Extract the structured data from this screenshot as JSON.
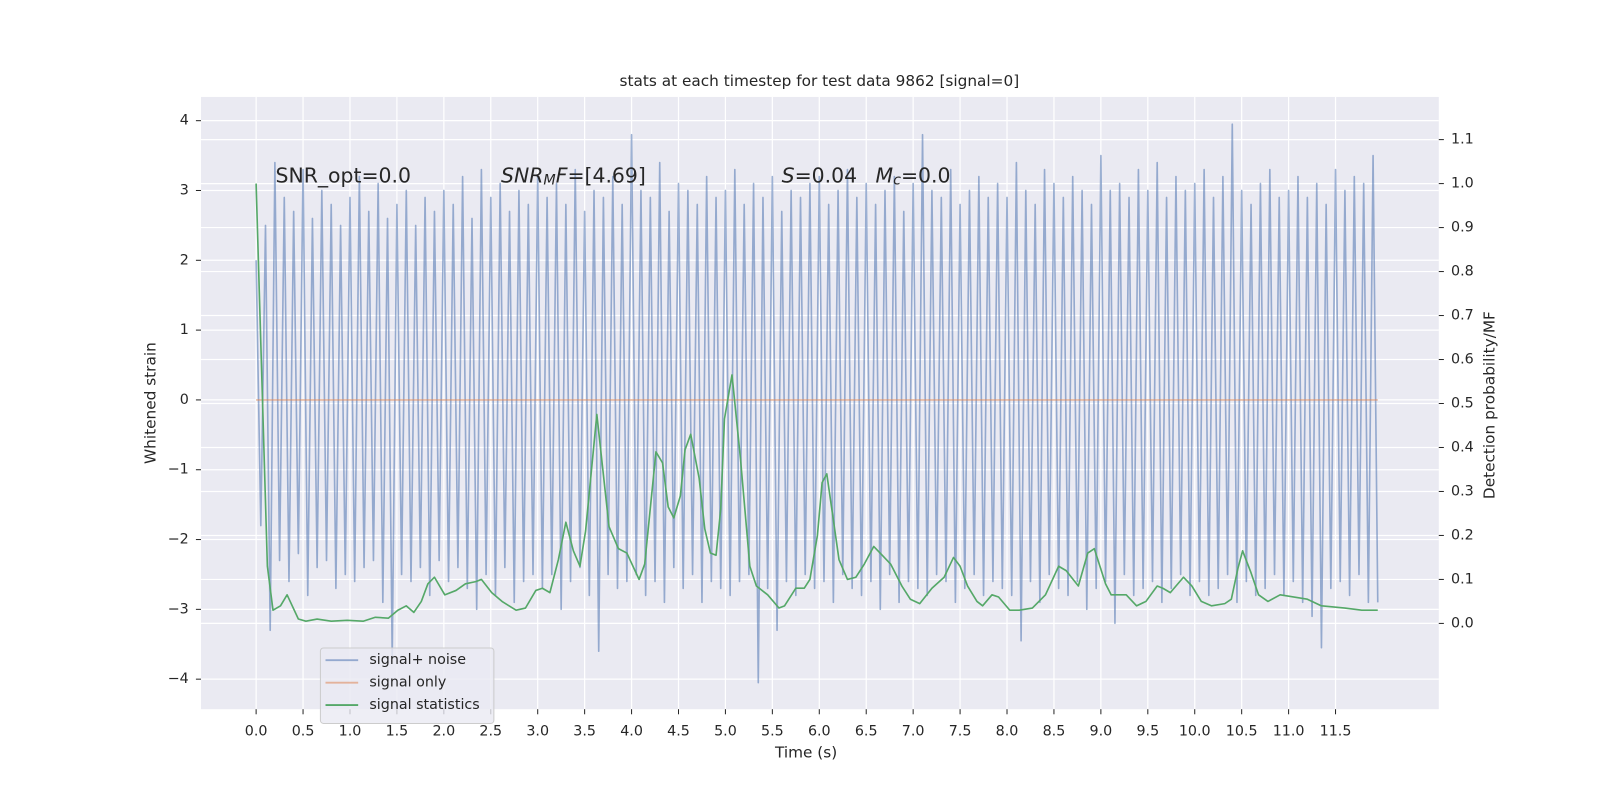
{
  "chart_data": {
    "type": "line",
    "title": "stats at each timestep for test data 9862 [signal=0]",
    "xlabel": "Time (s)",
    "ylabel": "Whitened strain",
    "y2label": "Detection probability/MF",
    "grid": true,
    "legend": "lower left",
    "xlim": [
      -0.587,
      12.6
    ],
    "ylim": [
      -4.43,
      4.34
    ],
    "y2lim": [
      -0.195,
      1.197
    ],
    "xticks": [
      {
        "value": 0,
        "label": "0.0"
      },
      0.5,
      {
        "value": 1,
        "label": "1.0"
      },
      1.5,
      {
        "value": 2,
        "label": "2.0"
      },
      2.5,
      {
        "value": 3,
        "label": "3.0"
      },
      3.5,
      {
        "value": 4,
        "label": "4.0"
      },
      4.5,
      {
        "value": 5,
        "label": "5.0"
      },
      5.5,
      {
        "value": 6,
        "label": "6.0"
      },
      6.5,
      {
        "value": 7,
        "label": "7.0"
      },
      7.5,
      {
        "value": 8,
        "label": "8.0"
      },
      8.5,
      {
        "value": 9,
        "label": "9.0"
      },
      9.5,
      {
        "value": 10,
        "label": "10.0"
      },
      10.5,
      {
        "value": 11,
        "label": "11.0"
      },
      11.5
    ],
    "yticks": [
      {
        "value": -4,
        "label": "−4"
      },
      {
        "value": -3,
        "label": "−3"
      },
      {
        "value": -2,
        "label": "−2"
      },
      {
        "value": -1,
        "label": "−1"
      },
      0,
      1,
      2,
      3,
      4
    ],
    "y2ticks": [
      {
        "value": 0,
        "label": "0.0"
      },
      0.1,
      0.2,
      0.3,
      0.4,
      0.5,
      0.6,
      0.7,
      0.8,
      0.9,
      {
        "value": 1,
        "label": "1.0"
      },
      1.1
    ],
    "annotations": [
      [
        {
          "text": "SNR_opt=0.0"
        }
      ],
      [
        {
          "text": "SNR",
          "italic": true
        },
        {
          "text": "M",
          "italic": true,
          "sub": true
        },
        {
          "text": "F",
          "italic": true
        },
        {
          "text": "=[4.69]"
        }
      ],
      [
        {
          "text": "S",
          "italic": true
        },
        {
          "text": "=0.04"
        }
      ],
      [
        {
          "text": "M",
          "italic": true
        },
        {
          "text": "c",
          "italic": true,
          "sub": true
        },
        {
          "text": "=0.0"
        }
      ]
    ],
    "series": [
      {
        "name": "signal+ noise",
        "color": "#4c72b0",
        "alpha": 0.55,
        "x": [
          0,
          0.05,
          0.1,
          0.15,
          0.2,
          0.25,
          0.3,
          0.35,
          0.4,
          0.45,
          0.5,
          0.55,
          0.6,
          0.65,
          0.7,
          0.75,
          0.8,
          0.85,
          0.9,
          0.95,
          1,
          1.05,
          1.1,
          1.15,
          1.2,
          1.25,
          1.3,
          1.35,
          1.4,
          1.45,
          1.5,
          1.55,
          1.6,
          1.65,
          1.7,
          1.75,
          1.8,
          1.85,
          1.9,
          1.95,
          2,
          2.05,
          2.1,
          2.15,
          2.2,
          2.25,
          2.3,
          2.35,
          2.4,
          2.45,
          2.5,
          2.55,
          2.6,
          2.65,
          2.7,
          2.75,
          2.8,
          2.85,
          2.9,
          2.95,
          3,
          3.05,
          3.1,
          3.15,
          3.2,
          3.25,
          3.3,
          3.35,
          3.4,
          3.45,
          3.5,
          3.55,
          3.6,
          3.65,
          3.7,
          3.75,
          3.8,
          3.85,
          3.9,
          3.95,
          4,
          4.05,
          4.1,
          4.15,
          4.2,
          4.25,
          4.3,
          4.35,
          4.4,
          4.45,
          4.5,
          4.55,
          4.6,
          4.65,
          4.7,
          4.75,
          4.8,
          4.85,
          4.9,
          4.95,
          5,
          5.05,
          5.1,
          5.15,
          5.2,
          5.25,
          5.3,
          5.35,
          5.4,
          5.45,
          5.5,
          5.55,
          5.6,
          5.65,
          5.7,
          5.75,
          5.8,
          5.85,
          5.9,
          5.95,
          6,
          6.05,
          6.1,
          6.15,
          6.2,
          6.25,
          6.3,
          6.35,
          6.4,
          6.45,
          6.5,
          6.55,
          6.6,
          6.65,
          6.7,
          6.75,
          6.8,
          6.85,
          6.9,
          6.95,
          7,
          7.05,
          7.1,
          7.15,
          7.2,
          7.25,
          7.3,
          7.35,
          7.4,
          7.45,
          7.5,
          7.55,
          7.6,
          7.65,
          7.7,
          7.75,
          7.8,
          7.85,
          7.9,
          7.95,
          8,
          8.05,
          8.1,
          8.15,
          8.2,
          8.25,
          8.3,
          8.35,
          8.4,
          8.45,
          8.5,
          8.55,
          8.6,
          8.65,
          8.7,
          8.75,
          8.8,
          8.85,
          8.9,
          8.95,
          9,
          9.05,
          9.1,
          9.15,
          9.2,
          9.25,
          9.3,
          9.35,
          9.4,
          9.45,
          9.5,
          9.55,
          9.6,
          9.65,
          9.7,
          9.75,
          9.8,
          9.85,
          9.9,
          9.95,
          10,
          10.05,
          10.1,
          10.15,
          10.2,
          10.25,
          10.3,
          10.35,
          10.4,
          10.45,
          10.5,
          10.55,
          10.6,
          10.65,
          10.7,
          10.75,
          10.8,
          10.85,
          10.9,
          10.95,
          11,
          11.05,
          11.1,
          11.15,
          11.2,
          11.25,
          11.3,
          11.35,
          11.4,
          11.45,
          11.5,
          11.55,
          11.6,
          11.65,
          11.7,
          11.75,
          11.8,
          11.85,
          11.9,
          11.95
        ],
        "values": [
          2.0,
          -1.8,
          2.5,
          -3.3,
          3.4,
          -2.3,
          2.9,
          -2.6,
          2.7,
          -2.2,
          3.3,
          -2.8,
          2.6,
          -2.4,
          3.0,
          -2.3,
          2.8,
          -2.7,
          2.5,
          -2.5,
          2.9,
          -2.6,
          3.2,
          -2.4,
          2.7,
          -2.3,
          3.1,
          -2.9,
          2.6,
          -3.7,
          2.8,
          -2.5,
          3.0,
          -2.6,
          2.5,
          -2.4,
          2.9,
          -2.8,
          2.7,
          -2.3,
          3.0,
          -2.6,
          2.8,
          -2.4,
          3.2,
          -2.7,
          2.6,
          -3.0,
          3.3,
          -2.5,
          2.9,
          -2.8,
          3.1,
          -2.4,
          2.7,
          -2.9,
          3.0,
          -2.6,
          2.8,
          -2.5,
          3.2,
          -2.7,
          2.9,
          -2.5,
          3.1,
          -3.0,
          2.8,
          -2.6,
          3.3,
          -2.4,
          2.7,
          -2.8,
          3.0,
          -3.6,
          2.9,
          -2.5,
          3.2,
          -2.7,
          2.8,
          -2.6,
          3.8,
          -2.5,
          3.0,
          -2.8,
          2.9,
          -2.6,
          3.4,
          -2.9,
          2.7,
          -2.4,
          3.1,
          -2.7,
          3.0,
          -2.5,
          2.8,
          -2.9,
          3.2,
          -2.6,
          2.9,
          -2.7,
          3.0,
          -2.8,
          3.3,
          -2.6,
          2.8,
          -2.5,
          3.1,
          -4.05,
          2.9,
          -2.7,
          3.2,
          -3.3,
          2.7,
          -2.6,
          3.0,
          -2.8,
          2.9,
          -2.5,
          3.1,
          -2.7,
          3.2,
          -2.6,
          2.8,
          -2.9,
          3.0,
          -2.5,
          3.3,
          -2.7,
          2.9,
          -2.8,
          3.1,
          -2.6,
          2.8,
          -3.0,
          3.0,
          -2.5,
          3.2,
          -2.9,
          2.7,
          -2.6,
          3.1,
          -2.7,
          3.8,
          -2.8,
          3.0,
          -2.5,
          2.9,
          -2.6,
          3.3,
          -2.9,
          2.8,
          -2.7,
          3.0,
          -2.5,
          3.2,
          -2.8,
          2.9,
          -2.6,
          3.1,
          -2.7,
          2.9,
          -2.8,
          3.4,
          -3.45,
          3.0,
          -2.6,
          2.8,
          -2.9,
          3.3,
          -2.5,
          3.1,
          -2.7,
          2.9,
          -2.8,
          3.2,
          -2.6,
          3.0,
          -3.0,
          2.8,
          -2.7,
          3.5,
          -2.6,
          3.0,
          -3.2,
          3.1,
          -2.5,
          2.9,
          -2.8,
          3.3,
          -2.7,
          3.0,
          -2.6,
          3.4,
          -2.9,
          2.9,
          -2.7,
          3.2,
          -2.5,
          3.0,
          -2.8,
          3.1,
          -2.6,
          3.3,
          -2.8,
          2.9,
          -2.7,
          3.2,
          -2.5,
          3.95,
          -2.9,
          3.0,
          -2.6,
          2.8,
          -2.8,
          3.1,
          -2.7,
          3.3,
          -2.5,
          2.9,
          -2.8,
          3.0,
          -2.6,
          3.2,
          -2.9,
          2.9,
          -3.1,
          3.1,
          -3.55,
          2.8,
          -2.7,
          3.3,
          -2.6,
          3.0,
          -2.8,
          3.2,
          -2.5,
          3.1,
          -2.9,
          3.5,
          -2.9
        ]
      },
      {
        "name": "signal only",
        "color": "#dd8452",
        "alpha": 0.55,
        "x": [
          0,
          11.95
        ],
        "values": [
          0,
          0
        ]
      },
      {
        "name": "signal statistics",
        "color": "#55a868",
        "alpha": 1,
        "axis": "y2",
        "x": [
          0,
          0.12,
          0.18,
          0.26,
          0.33,
          0.45,
          0.53,
          0.65,
          0.8,
          0.97,
          1.14,
          1.27,
          1.41,
          1.51,
          1.6,
          1.68,
          1.76,
          1.83,
          1.9,
          2.01,
          2.13,
          2.23,
          2.34,
          2.4,
          2.51,
          2.62,
          2.77,
          2.87,
          2.98,
          3.05,
          3.13,
          3.22,
          3.3,
          3.38,
          3.45,
          3.51,
          3.63,
          3.76,
          3.86,
          3.95,
          4.08,
          4.14,
          4.26,
          4.33,
          4.39,
          4.45,
          4.52,
          4.57,
          4.63,
          4.72,
          4.78,
          4.84,
          4.9,
          4.95,
          4.99,
          5.07,
          5.16,
          5.26,
          5.33,
          5.45,
          5.57,
          5.63,
          5.75,
          5.84,
          5.9,
          5.98,
          6.03,
          6.08,
          6.13,
          6.21,
          6.3,
          6.39,
          6.48,
          6.58,
          6.67,
          6.76,
          6.88,
          6.97,
          7.07,
          7.2,
          7.33,
          7.43,
          7.5,
          7.58,
          7.68,
          7.74,
          7.84,
          7.91,
          8.03,
          8.13,
          8.27,
          8.41,
          8.55,
          8.63,
          8.76,
          8.86,
          8.93,
          9.05,
          9.11,
          9.27,
          9.38,
          9.48,
          9.6,
          9.66,
          9.74,
          9.88,
          9.97,
          10.07,
          10.18,
          10.32,
          10.39,
          10.46,
          10.51,
          10.6,
          10.68,
          10.78,
          10.91,
          11.2,
          11.35,
          11.6,
          11.78,
          11.95
        ],
        "values": [
          1.0,
          0.13,
          0.03,
          0.04,
          0.065,
          0.01,
          0.005,
          0.01,
          0.005,
          0.007,
          0.005,
          0.014,
          0.012,
          0.03,
          0.04,
          0.025,
          0.05,
          0.09,
          0.105,
          0.065,
          0.075,
          0.09,
          0.095,
          0.1,
          0.07,
          0.05,
          0.03,
          0.035,
          0.075,
          0.08,
          0.07,
          0.145,
          0.23,
          0.165,
          0.13,
          0.21,
          0.475,
          0.22,
          0.17,
          0.16,
          0.1,
          0.135,
          0.39,
          0.365,
          0.265,
          0.24,
          0.29,
          0.395,
          0.43,
          0.33,
          0.215,
          0.16,
          0.155,
          0.26,
          0.465,
          0.565,
          0.375,
          0.13,
          0.085,
          0.065,
          0.035,
          0.04,
          0.08,
          0.08,
          0.1,
          0.2,
          0.32,
          0.34,
          0.265,
          0.145,
          0.1,
          0.105,
          0.135,
          0.175,
          0.155,
          0.135,
          0.085,
          0.055,
          0.045,
          0.08,
          0.105,
          0.15,
          0.13,
          0.085,
          0.05,
          0.04,
          0.065,
          0.06,
          0.03,
          0.03,
          0.035,
          0.065,
          0.13,
          0.12,
          0.085,
          0.16,
          0.17,
          0.09,
          0.065,
          0.065,
          0.04,
          0.05,
          0.085,
          0.08,
          0.07,
          0.105,
          0.085,
          0.05,
          0.04,
          0.045,
          0.055,
          0.125,
          0.165,
          0.115,
          0.065,
          0.05,
          0.065,
          0.055,
          0.04,
          0.035,
          0.03,
          0.03
        ]
      }
    ]
  }
}
